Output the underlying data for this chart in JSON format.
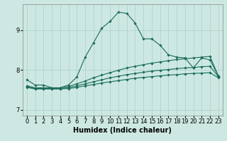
{
  "xlabel": "Humidex (Indice chaleur)",
  "ylabel": "",
  "bg_color": "#cde8e2",
  "line_color": "#1a6b5a",
  "grid_color": "#aacfc8",
  "xlim": [
    -0.5,
    23.5
  ],
  "ylim": [
    6.85,
    9.65
  ],
  "yticks": [
    7,
    8,
    9
  ],
  "xticks": [
    0,
    1,
    2,
    3,
    4,
    5,
    6,
    7,
    8,
    9,
    10,
    11,
    12,
    13,
    14,
    15,
    16,
    17,
    18,
    19,
    20,
    21,
    22,
    23
  ],
  "series": [
    {
      "x": [
        0,
        1,
        2,
        3,
        4,
        5,
        6,
        7,
        8,
        9,
        10,
        11,
        12,
        13,
        14,
        15,
        16,
        17,
        18,
        19,
        20,
        21,
        22,
        23
      ],
      "y": [
        7.75,
        7.62,
        7.62,
        7.55,
        7.55,
        7.62,
        7.82,
        8.32,
        8.68,
        9.05,
        9.22,
        9.45,
        9.42,
        9.18,
        8.78,
        8.78,
        8.62,
        8.38,
        8.32,
        8.3,
        8.05,
        8.3,
        8.25,
        7.85
      ]
    },
    {
      "x": [
        0,
        1,
        2,
        3,
        4,
        5,
        6,
        7,
        8,
        9,
        10,
        11,
        12,
        13,
        14,
        15,
        16,
        17,
        18,
        19,
        20,
        21,
        22,
        23
      ],
      "y": [
        7.6,
        7.55,
        7.55,
        7.55,
        7.55,
        7.58,
        7.65,
        7.72,
        7.8,
        7.87,
        7.93,
        7.99,
        8.05,
        8.09,
        8.13,
        8.17,
        8.2,
        8.23,
        8.26,
        8.28,
        8.3,
        8.32,
        8.34,
        7.85
      ]
    },
    {
      "x": [
        0,
        1,
        2,
        3,
        4,
        5,
        6,
        7,
        8,
        9,
        10,
        11,
        12,
        13,
        14,
        15,
        16,
        17,
        18,
        19,
        20,
        21,
        22,
        23
      ],
      "y": [
        7.58,
        7.53,
        7.53,
        7.53,
        7.53,
        7.55,
        7.6,
        7.65,
        7.7,
        7.75,
        7.8,
        7.84,
        7.88,
        7.91,
        7.94,
        7.97,
        7.99,
        8.01,
        8.03,
        8.05,
        8.06,
        8.08,
        8.09,
        7.83
      ]
    },
    {
      "x": [
        0,
        1,
        2,
        3,
        4,
        5,
        6,
        7,
        8,
        9,
        10,
        11,
        12,
        13,
        14,
        15,
        16,
        17,
        18,
        19,
        20,
        21,
        22,
        23
      ],
      "y": [
        7.56,
        7.52,
        7.52,
        7.52,
        7.52,
        7.53,
        7.56,
        7.6,
        7.63,
        7.67,
        7.7,
        7.73,
        7.76,
        7.79,
        7.81,
        7.83,
        7.85,
        7.87,
        7.88,
        7.9,
        7.91,
        7.92,
        7.93,
        7.8
      ]
    }
  ],
  "marker": "D",
  "marker_size": 1.8,
  "linewidth": 0.8,
  "label_fontsize": 7,
  "tick_fontsize": 6
}
